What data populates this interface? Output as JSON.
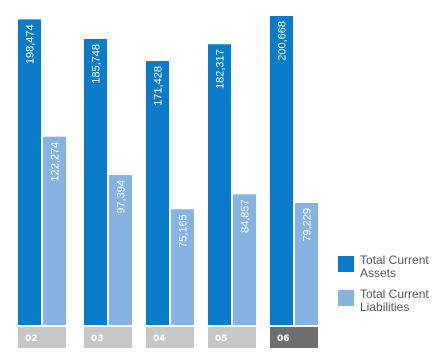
{
  "chart_data": {
    "type": "bar",
    "categories": [
      "02",
      "03",
      "04",
      "05",
      "06"
    ],
    "series": [
      {
        "name": "Total Current Assets",
        "values": [
          198474,
          185748,
          171428,
          182317,
          200668
        ],
        "labels": [
          "198,474",
          "185,748",
          "171,428",
          "182,317",
          "200,668"
        ],
        "color": "#0a7bc8"
      },
      {
        "name": "Total Current Liabilities",
        "values": [
          122274,
          97394,
          75165,
          84857,
          79229
        ],
        "labels": [
          "122,274",
          "97,394",
          "75,165",
          "84,857",
          "79,229"
        ],
        "color": "#86b3e2"
      }
    ],
    "ylim": [
      0,
      200668
    ],
    "tick_colors": [
      "#c7c7c7",
      "#c7c7c7",
      "#c7c7c7",
      "#c7c7c7",
      "#6e6e6e"
    ],
    "legend_position": "right"
  }
}
